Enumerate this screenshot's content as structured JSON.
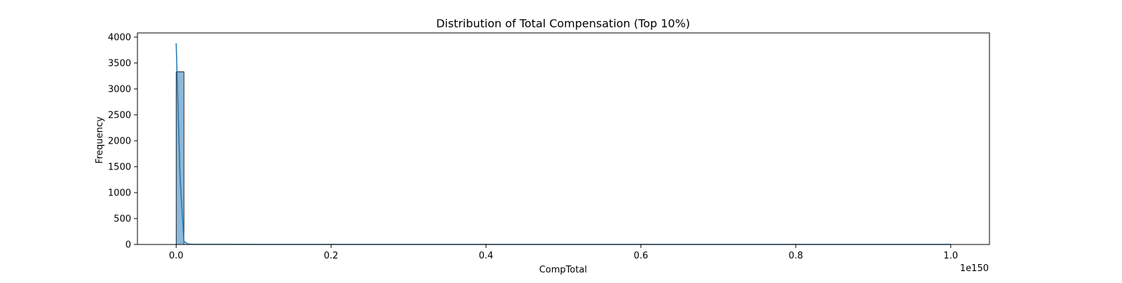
{
  "chart_data": {
    "type": "bar",
    "title": "Distribution of Total Compensation (Top 10%)",
    "xlabel": "CompTotal",
    "ylabel": "Frequency",
    "x_offset_text": "1e150",
    "xlim": [
      -0.05,
      1.05
    ],
    "ylim": [
      0,
      4080
    ],
    "x_ticks": [
      0.0,
      0.2,
      0.4,
      0.6,
      0.8,
      1.0
    ],
    "x_tick_labels": [
      "0.0",
      "0.2",
      "0.4",
      "0.6",
      "0.8",
      "1.0"
    ],
    "y_ticks": [
      0,
      500,
      1000,
      1500,
      2000,
      2500,
      3000,
      3500,
      4000
    ],
    "y_tick_labels": [
      "0",
      "500",
      "1000",
      "1500",
      "2000",
      "2500",
      "3000",
      "3500",
      "4000"
    ],
    "grid": false,
    "legend": false,
    "bin_width": 0.01,
    "bins": [
      {
        "x_start": 0.0,
        "x_end": 0.01,
        "count": 3330
      },
      {
        "x_start": 0.01,
        "x_end": 0.02,
        "count": 3
      },
      {
        "x_start": 0.02,
        "x_end": 0.03,
        "count": 0
      },
      {
        "x_start": 0.99,
        "x_end": 1.0,
        "count": 1
      }
    ],
    "kde": {
      "x": [
        0.0,
        0.005,
        0.01,
        0.015,
        0.02,
        0.05,
        0.1,
        0.3,
        0.5,
        0.7,
        0.9,
        1.0
      ],
      "y": [
        3880,
        1300,
        60,
        10,
        5,
        3,
        2,
        2,
        2,
        2,
        2,
        2
      ]
    },
    "colors": {
      "bar_fill": "#8db8d9",
      "bar_edge": "#000000",
      "kde_line": "#1f77b4",
      "axis": "#000000"
    }
  }
}
